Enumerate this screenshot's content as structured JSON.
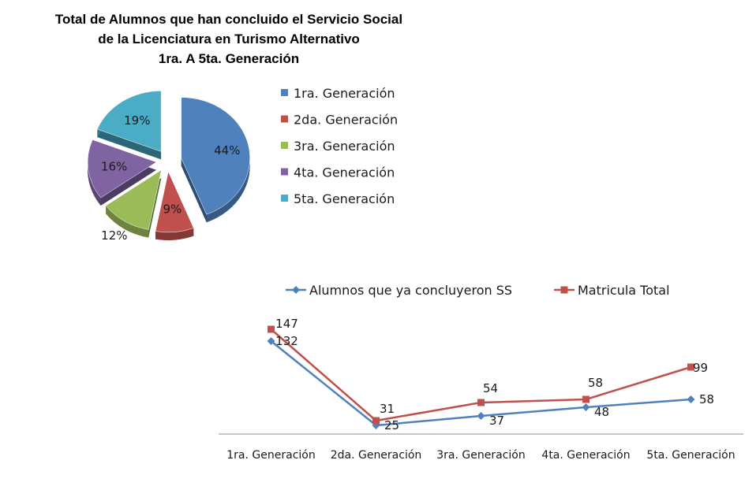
{
  "chart_data": [
    {
      "type": "pie",
      "title_lines": [
        "Total de Alumnos que han concluido el Servicio Social",
        "de la Licenciatura en Turismo Alternativo",
        "1ra. A 5ta. Generación"
      ],
      "categories": [
        "1ra. Generación",
        "2da. Generación",
        "3ra. Generación",
        "4ta. Generación",
        "5ta. Generación"
      ],
      "values": [
        44,
        9,
        12,
        16,
        19
      ],
      "labels": [
        "44%",
        "9%",
        "12%",
        "16%",
        "19%"
      ],
      "colors": [
        "#4F81BD",
        "#C0504D",
        "#9BBB59",
        "#8064A2",
        "#4BACC6"
      ],
      "exploded": true,
      "legend_position": "right"
    },
    {
      "type": "line",
      "categories": [
        "1ra. Generación",
        "2da. Generación",
        "3ra. Generación",
        "4ta. Generación",
        "5ta. Generación"
      ],
      "series": [
        {
          "name": "Alumnos que ya concluyeron SS",
          "values": [
            132,
            25,
            37,
            48,
            58
          ],
          "color": "#4F81BD",
          "marker": "diamond"
        },
        {
          "name": "Matricula Total",
          "values": [
            147,
            31,
            54,
            58,
            99
          ],
          "color": "#C0504D",
          "marker": "square"
        }
      ],
      "ylim": [
        0,
        160
      ],
      "grid": false,
      "legend_position": "top"
    }
  ]
}
